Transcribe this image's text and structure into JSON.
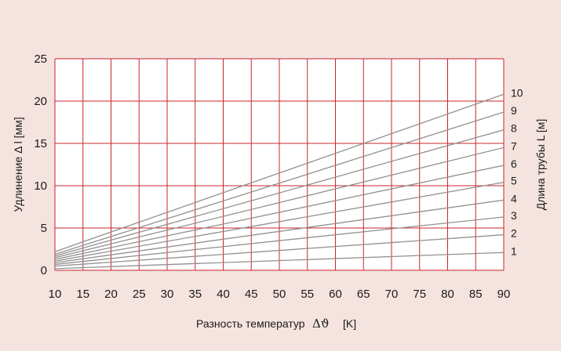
{
  "colors": {
    "background": "#f5e3e0",
    "plot_background": "#ffffff",
    "grid": "#c8252b",
    "lines": "#909090",
    "text": "#1a1a1a"
  },
  "chart_data": {
    "type": "line",
    "xlabel": "Разность температур",
    "xlabel_symbol": "Δϑ",
    "xlabel_unit": "[K]",
    "ylabel": "Удлинение Δ l [мм]",
    "y2label": "Длина трубы L [м]",
    "xlim": [
      10,
      90
    ],
    "ylim": [
      0,
      25
    ],
    "x_ticks": [
      10,
      15,
      20,
      25,
      30,
      35,
      40,
      45,
      50,
      55,
      60,
      65,
      70,
      75,
      80,
      85,
      90
    ],
    "y_ticks": [
      0,
      5,
      10,
      15,
      20,
      25
    ],
    "grid": true,
    "x": [
      10,
      90
    ],
    "series": [
      {
        "name": "1",
        "values": [
          0.2,
          2.1
        ]
      },
      {
        "name": "2",
        "values": [
          0.5,
          4.2
        ]
      },
      {
        "name": "3",
        "values": [
          0.7,
          6.3
        ]
      },
      {
        "name": "4",
        "values": [
          0.9,
          8.3
        ]
      },
      {
        "name": "5",
        "values": [
          1.1,
          10.4
        ]
      },
      {
        "name": "6",
        "values": [
          1.3,
          12.4
        ]
      },
      {
        "name": "7",
        "values": [
          1.5,
          14.5
        ]
      },
      {
        "name": "8",
        "values": [
          1.7,
          16.6
        ]
      },
      {
        "name": "9",
        "values": [
          1.9,
          18.7
        ]
      },
      {
        "name": "10",
        "values": [
          2.2,
          20.8
        ]
      }
    ]
  }
}
